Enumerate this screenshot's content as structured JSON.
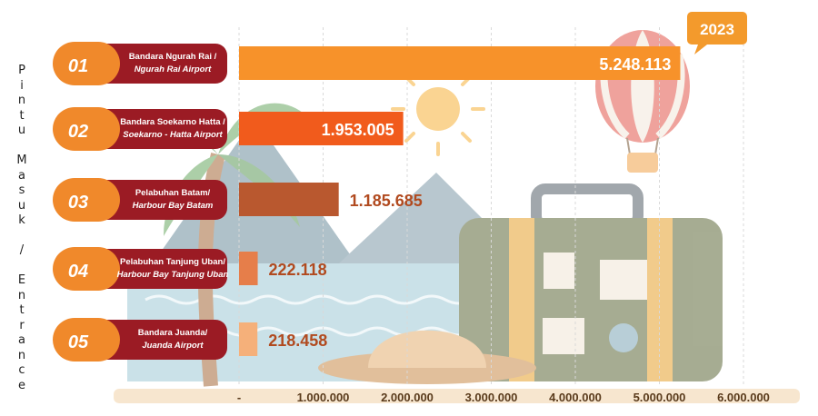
{
  "side_label": "Pintu Masuk / Entrance",
  "year_badge": "2023",
  "colors": {
    "ribbon_orange": "#f0892b",
    "ribbon_red": "#9b1b24",
    "bars": [
      "#f7922a",
      "#f15b1c",
      "#b9582f",
      "#e67e4a",
      "#f5b07a"
    ],
    "label_dark": "#b14a1f",
    "badge": "#f39a2c"
  },
  "chart_data": {
    "type": "bar",
    "orientation": "horizontal",
    "categories": [
      {
        "num": "01",
        "line1": "Bandara Ngurah Rai /",
        "line2": "Ngurah Rai Airport"
      },
      {
        "num": "02",
        "line1": "Bandara Soekarno Hatta /",
        "line2": "Soekarno - Hatta Airport"
      },
      {
        "num": "03",
        "line1": "Pelabuhan Batam/",
        "line2": "Harbour Bay Batam"
      },
      {
        "num": "04",
        "line1": "Pelabuhan Tanjung Uban/",
        "line2": "Harbour Bay Tanjung Uban"
      },
      {
        "num": "05",
        "line1": "Bandara Juanda/",
        "line2": "Juanda Airport"
      }
    ],
    "values": [
      5248113,
      1953005,
      1185685,
      222118,
      218458
    ],
    "value_labels": [
      "5.248.113",
      "1.953.005",
      "1.185.685",
      "222.118",
      "218.458"
    ],
    "xlim": [
      0,
      6000000
    ],
    "x_ticks": [
      0,
      1000000,
      2000000,
      3000000,
      4000000,
      5000000,
      6000000
    ],
    "x_tick_labels": [
      "-",
      "1.000.000",
      "2.000.000",
      "3.000.000",
      "4.000.000",
      "5.000.000",
      "6.000.000"
    ],
    "grid": "vertical"
  }
}
